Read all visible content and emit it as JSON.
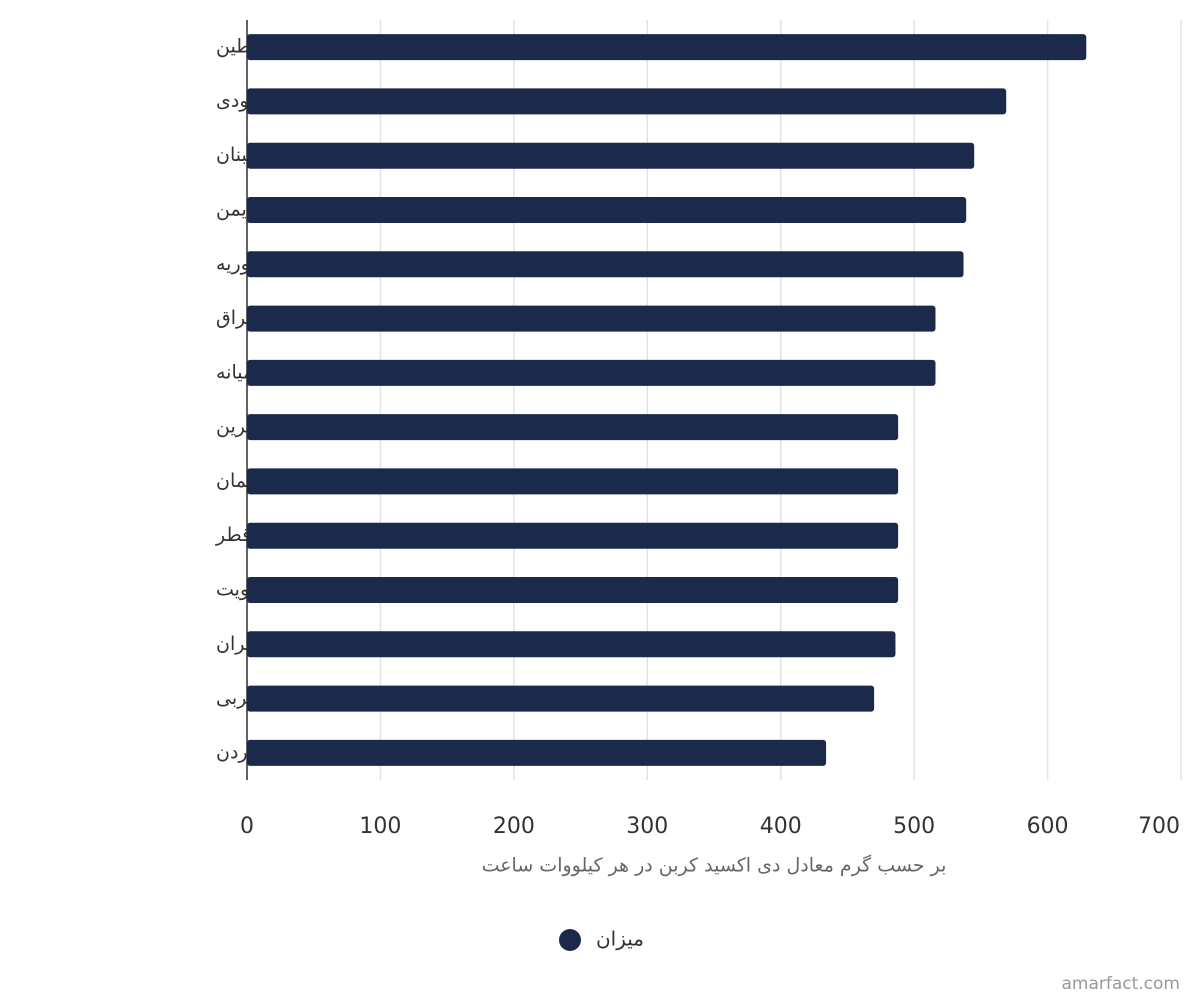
{
  "chart_data": {
    "type": "bar",
    "orientation": "horizontal",
    "categories": [
      "فلسطین",
      "عربستان سعودی",
      "لبنان",
      "یمن",
      "جمهوری عربی سوریه",
      "عراق",
      "خاورمیانه",
      "بحرین",
      "عمان",
      "قطر",
      "کویت",
      "ایران",
      "امارات متحده عربی",
      "اردن"
    ],
    "series": [
      {
        "name": "میزان",
        "color": "#1b2a4a",
        "values": [
          629,
          569,
          545,
          539,
          537,
          516,
          516,
          488,
          488,
          488,
          488,
          486,
          470,
          434
        ]
      }
    ],
    "xlim": [
      0,
      700
    ],
    "xticks": [
      0,
      100,
      200,
      300,
      400,
      500,
      600,
      700
    ],
    "xlabel": "بر حسب گرم معادل دی اکسید کربن در هر کیلووات ساعت",
    "grid": true,
    "legend": "bottom",
    "credit": "amarfact.com"
  }
}
